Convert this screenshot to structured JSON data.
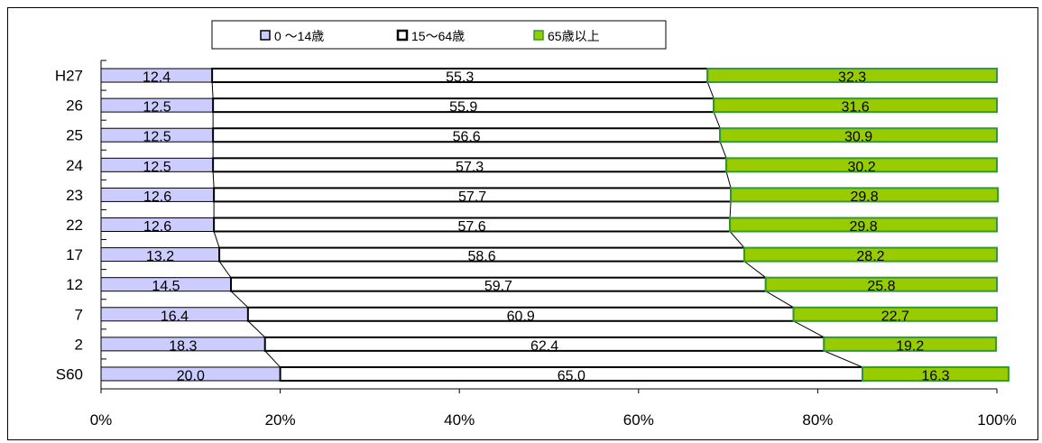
{
  "chart_data": {
    "type": "bar",
    "stacked": "percent",
    "orientation": "horizontal",
    "categories": [
      "H27",
      "26",
      "25",
      "24",
      "23",
      "22",
      "17",
      "12",
      "7",
      "2",
      "S60"
    ],
    "series": [
      {
        "name": "0 ～14歳",
        "values": [
          12.4,
          12.5,
          12.5,
          12.5,
          12.6,
          12.6,
          13.2,
          14.5,
          16.4,
          18.3,
          20.0
        ],
        "color": "#ccccff"
      },
      {
        "name": "15～64歳",
        "values": [
          55.3,
          55.9,
          56.6,
          57.3,
          57.7,
          57.6,
          58.6,
          59.7,
          60.9,
          62.4,
          65.0
        ],
        "color": "#ffffff"
      },
      {
        "name": "65歳以上",
        "values": [
          32.3,
          31.6,
          30.9,
          30.2,
          29.8,
          29.8,
          28.2,
          25.8,
          22.7,
          19.2,
          16.3
        ],
        "color": "#99cc00"
      }
    ],
    "xticks": [
      "0%",
      "20%",
      "40%",
      "60%",
      "80%",
      "100%"
    ],
    "xlim": [
      0,
      100
    ],
    "legend_position": "top",
    "colors": {
      "green_border": "#339933",
      "bar_border": "#000000",
      "series_line": "#000000"
    }
  }
}
